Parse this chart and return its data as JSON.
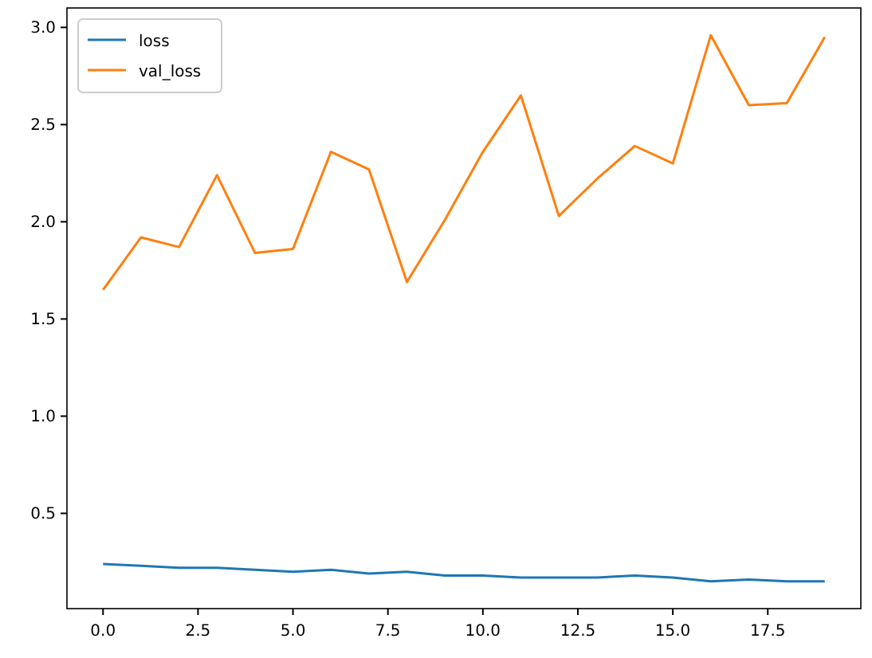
{
  "chart_data": {
    "type": "line",
    "x": [
      0,
      1,
      2,
      3,
      4,
      5,
      6,
      7,
      8,
      9,
      10,
      11,
      12,
      13,
      14,
      15,
      16,
      17,
      18,
      19
    ],
    "series": [
      {
        "name": "loss",
        "color": "#1f77b4",
        "values": [
          0.24,
          0.23,
          0.22,
          0.22,
          0.21,
          0.2,
          0.21,
          0.19,
          0.2,
          0.18,
          0.18,
          0.17,
          0.17,
          0.17,
          0.18,
          0.17,
          0.15,
          0.16,
          0.15,
          0.15
        ]
      },
      {
        "name": "val_loss",
        "color": "#ff7f0e",
        "values": [
          1.65,
          1.92,
          1.87,
          2.24,
          1.84,
          1.86,
          2.36,
          2.27,
          1.69,
          2.01,
          2.36,
          2.65,
          2.03,
          2.22,
          2.39,
          2.3,
          2.96,
          2.6,
          2.61,
          2.95
        ]
      }
    ],
    "xlim": [
      -0.95,
      19.95
    ],
    "ylim": [
      0.01,
      3.1
    ],
    "xticks": [
      {
        "value": 0,
        "label": "0.0"
      },
      {
        "value": 2.5,
        "label": "2.5"
      },
      {
        "value": 5,
        "label": "5.0"
      },
      {
        "value": 7.5,
        "label": "7.5"
      },
      {
        "value": 10,
        "label": "10.0"
      },
      {
        "value": 12.5,
        "label": "12.5"
      },
      {
        "value": 15,
        "label": "15.0"
      },
      {
        "value": 17.5,
        "label": "17.5"
      }
    ],
    "yticks": [
      {
        "value": 0.5,
        "label": "0.5"
      },
      {
        "value": 1,
        "label": "1.0"
      },
      {
        "value": 1.5,
        "label": "1.5"
      },
      {
        "value": 2,
        "label": "2.0"
      },
      {
        "value": 2.5,
        "label": "2.5"
      },
      {
        "value": 3,
        "label": "3.0"
      }
    ],
    "legend": "top left",
    "grid": false,
    "marker": "none",
    "line_style": "solid"
  }
}
